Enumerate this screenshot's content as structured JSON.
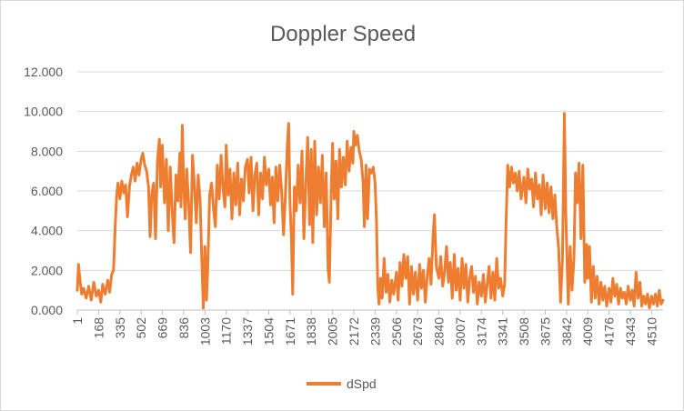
{
  "chart_data": {
    "type": "line",
    "title": "Doppler Speed",
    "xlabel": "",
    "ylabel": "",
    "ylim": [
      0,
      12
    ],
    "y_ticks": [
      "0.000",
      "2.000",
      "4.000",
      "6.000",
      "8.000",
      "10.000",
      "12.000"
    ],
    "x_tick_labels": [
      "1",
      "168",
      "335",
      "502",
      "669",
      "836",
      "1003",
      "1170",
      "1337",
      "1504",
      "1671",
      "1838",
      "2005",
      "2172",
      "2339",
      "2506",
      "2673",
      "2840",
      "3007",
      "3174",
      "3341",
      "3508",
      "3675",
      "3842",
      "4009",
      "4176",
      "4343",
      "4510"
    ],
    "x_range": [
      1,
      4600
    ],
    "grid": true,
    "legend_position": "bottom",
    "series": [
      {
        "name": "dSpd",
        "color": "#ED7D31",
        "points": [
          [
            1,
            1.0
          ],
          [
            10,
            2.3
          ],
          [
            20,
            1.6
          ],
          [
            35,
            0.8
          ],
          [
            50,
            1.1
          ],
          [
            70,
            0.6
          ],
          [
            90,
            1.2
          ],
          [
            110,
            0.5
          ],
          [
            130,
            1.4
          ],
          [
            150,
            0.7
          ],
          [
            168,
            1.0
          ],
          [
            185,
            0.4
          ],
          [
            200,
            1.3
          ],
          [
            220,
            0.8
          ],
          [
            240,
            1.5
          ],
          [
            255,
            0.9
          ],
          [
            270,
            1.8
          ],
          [
            285,
            2.0
          ],
          [
            300,
            4.5
          ],
          [
            310,
            5.8
          ],
          [
            320,
            6.4
          ],
          [
            335,
            5.6
          ],
          [
            350,
            6.5
          ],
          [
            365,
            5.9
          ],
          [
            380,
            6.3
          ],
          [
            395,
            4.7
          ],
          [
            410,
            6.2
          ],
          [
            425,
            6.8
          ],
          [
            440,
            7.2
          ],
          [
            455,
            6.5
          ],
          [
            470,
            7.4
          ],
          [
            485,
            6.8
          ],
          [
            502,
            7.6
          ],
          [
            515,
            7.9
          ],
          [
            530,
            7.3
          ],
          [
            545,
            7.0
          ],
          [
            560,
            6.2
          ],
          [
            572,
            3.7
          ],
          [
            585,
            5.8
          ],
          [
            600,
            6.4
          ],
          [
            615,
            3.6
          ],
          [
            630,
            7.5
          ],
          [
            645,
            8.6
          ],
          [
            655,
            6.2
          ],
          [
            669,
            8.3
          ],
          [
            685,
            5.4
          ],
          [
            700,
            7.6
          ],
          [
            715,
            4.0
          ],
          [
            730,
            7.2
          ],
          [
            745,
            5.1
          ],
          [
            760,
            3.4
          ],
          [
            775,
            6.8
          ],
          [
            790,
            5.5
          ],
          [
            805,
            7.9
          ],
          [
            815,
            5.2
          ],
          [
            825,
            9.3
          ],
          [
            836,
            6.4
          ],
          [
            848,
            4.6
          ],
          [
            860,
            7.1
          ],
          [
            875,
            5.4
          ],
          [
            890,
            2.9
          ],
          [
            905,
            7.8
          ],
          [
            920,
            6.3
          ],
          [
            935,
            4.4
          ],
          [
            950,
            6.8
          ],
          [
            965,
            5.5
          ],
          [
            980,
            2.2
          ],
          [
            990,
            0.1
          ],
          [
            1003,
            3.2
          ],
          [
            1015,
            0.5
          ],
          [
            1025,
            2.1
          ],
          [
            1040,
            5.8
          ],
          [
            1055,
            6.4
          ],
          [
            1070,
            5.1
          ],
          [
            1085,
            4.2
          ],
          [
            1100,
            7.3
          ],
          [
            1115,
            5.6
          ],
          [
            1130,
            7.8
          ],
          [
            1145,
            6.1
          ],
          [
            1160,
            5.2
          ],
          [
            1170,
            8.3
          ],
          [
            1185,
            5.8
          ],
          [
            1200,
            7.1
          ],
          [
            1215,
            4.6
          ],
          [
            1230,
            6.9
          ],
          [
            1245,
            5.3
          ],
          [
            1260,
            7.4
          ],
          [
            1275,
            4.8
          ],
          [
            1290,
            6.6
          ],
          [
            1305,
            5.5
          ],
          [
            1320,
            7.2
          ],
          [
            1337,
            7.6
          ],
          [
            1350,
            5.9
          ],
          [
            1365,
            7.7
          ],
          [
            1380,
            5.0
          ],
          [
            1395,
            6.8
          ],
          [
            1410,
            7.4
          ],
          [
            1425,
            4.8
          ],
          [
            1440,
            6.9
          ],
          [
            1455,
            5.6
          ],
          [
            1470,
            7.7
          ],
          [
            1485,
            6.3
          ],
          [
            1504,
            7.1
          ],
          [
            1518,
            5.3
          ],
          [
            1532,
            6.7
          ],
          [
            1546,
            4.4
          ],
          [
            1560,
            7.2
          ],
          [
            1575,
            5.5
          ],
          [
            1590,
            7.3
          ],
          [
            1605,
            6.0
          ],
          [
            1620,
            3.8
          ],
          [
            1635,
            5.8
          ],
          [
            1650,
            8.3
          ],
          [
            1660,
            9.4
          ],
          [
            1671,
            5.3
          ],
          [
            1682,
            3.6
          ],
          [
            1692,
            0.8
          ],
          [
            1705,
            6.2
          ],
          [
            1720,
            5.0
          ],
          [
            1735,
            7.3
          ],
          [
            1750,
            5.4
          ],
          [
            1765,
            8.0
          ],
          [
            1780,
            3.6
          ],
          [
            1795,
            6.4
          ],
          [
            1810,
            8.7
          ],
          [
            1825,
            4.3
          ],
          [
            1838,
            8.1
          ],
          [
            1850,
            3.4
          ],
          [
            1865,
            8.5
          ],
          [
            1880,
            4.8
          ],
          [
            1895,
            7.2
          ],
          [
            1910,
            5.4
          ],
          [
            1925,
            7.8
          ],
          [
            1940,
            4.2
          ],
          [
            1955,
            6.9
          ],
          [
            1970,
            2.1
          ],
          [
            1980,
            1.4
          ],
          [
            1995,
            6.1
          ],
          [
            2005,
            8.4
          ],
          [
            2018,
            5.6
          ],
          [
            2032,
            7.5
          ],
          [
            2046,
            4.6
          ],
          [
            2060,
            8.1
          ],
          [
            2075,
            6.2
          ],
          [
            2090,
            7.7
          ],
          [
            2105,
            6.3
          ],
          [
            2120,
            8.5
          ],
          [
            2135,
            7.0
          ],
          [
            2150,
            8.2
          ],
          [
            2165,
            7.4
          ],
          [
            2172,
            9.0
          ],
          [
            2185,
            8.3
          ],
          [
            2200,
            8.8
          ],
          [
            2215,
            8.0
          ],
          [
            2230,
            7.6
          ],
          [
            2245,
            6.4
          ],
          [
            2255,
            4.2
          ],
          [
            2268,
            7.3
          ],
          [
            2280,
            4.6
          ],
          [
            2295,
            7.1
          ],
          [
            2310,
            6.9
          ],
          [
            2325,
            7.2
          ],
          [
            2339,
            6.4
          ],
          [
            2350,
            4.5
          ],
          [
            2360,
            1.2
          ],
          [
            2370,
            0.3
          ],
          [
            2382,
            1.6
          ],
          [
            2395,
            0.6
          ],
          [
            2410,
            2.6
          ],
          [
            2425,
            0.9
          ],
          [
            2440,
            1.8
          ],
          [
            2455,
            0.4
          ],
          [
            2470,
            1.5
          ],
          [
            2485,
            0.8
          ],
          [
            2506,
            1.9
          ],
          [
            2520,
            0.5
          ],
          [
            2535,
            2.4
          ],
          [
            2550,
            1.2
          ],
          [
            2565,
            2.8
          ],
          [
            2580,
            1.6
          ],
          [
            2595,
            2.7
          ],
          [
            2610,
            0.3
          ],
          [
            2625,
            2.2
          ],
          [
            2640,
            0.8
          ],
          [
            2655,
            1.9
          ],
          [
            2673,
            0.5
          ],
          [
            2688,
            2.3
          ],
          [
            2703,
            1.1
          ],
          [
            2718,
            2.0
          ],
          [
            2733,
            0.4
          ],
          [
            2748,
            1.7
          ],
          [
            2763,
            2.6
          ],
          [
            2778,
            1.3
          ],
          [
            2793,
            3.6
          ],
          [
            2805,
            4.8
          ],
          [
            2820,
            2.2
          ],
          [
            2840,
            1.6
          ],
          [
            2855,
            2.7
          ],
          [
            2870,
            1.2
          ],
          [
            2885,
            1.9
          ],
          [
            2900,
            3.2
          ],
          [
            2915,
            1.4
          ],
          [
            2930,
            2.4
          ],
          [
            2945,
            0.6
          ],
          [
            2960,
            2.8
          ],
          [
            2975,
            1.0
          ],
          [
            2990,
            2.1
          ],
          [
            3007,
            0.5
          ],
          [
            3022,
            2.6
          ],
          [
            3037,
            1.1
          ],
          [
            3052,
            2.3
          ],
          [
            3067,
            0.4
          ],
          [
            3082,
            1.6
          ],
          [
            3097,
            2.2
          ],
          [
            3112,
            0.9
          ],
          [
            3127,
            1.7
          ],
          [
            3142,
            0.3
          ],
          [
            3157,
            1.4
          ],
          [
            3174,
            0.7
          ],
          [
            3189,
            1.8
          ],
          [
            3204,
            0.4
          ],
          [
            3219,
            1.3
          ],
          [
            3234,
            2.2
          ],
          [
            3249,
            0.6
          ],
          [
            3264,
            1.9
          ],
          [
            3279,
            0.5
          ],
          [
            3294,
            2.6
          ],
          [
            3309,
            1.1
          ],
          [
            3324,
            1.6
          ],
          [
            3341,
            0.7
          ],
          [
            3356,
            1.3
          ],
          [
            3368,
            4.6
          ],
          [
            3380,
            7.3
          ],
          [
            3395,
            6.2
          ],
          [
            3410,
            7.2
          ],
          [
            3425,
            6.4
          ],
          [
            3440,
            6.9
          ],
          [
            3455,
            6.0
          ],
          [
            3470,
            7.0
          ],
          [
            3485,
            5.6
          ],
          [
            3508,
            6.7
          ],
          [
            3523,
            5.4
          ],
          [
            3538,
            7.1
          ],
          [
            3553,
            6.1
          ],
          [
            3568,
            6.6
          ],
          [
            3583,
            5.2
          ],
          [
            3598,
            6.9
          ],
          [
            3613,
            5.6
          ],
          [
            3628,
            6.3
          ],
          [
            3643,
            4.8
          ],
          [
            3658,
            6.8
          ],
          [
            3675,
            5.1
          ],
          [
            3690,
            6.4
          ],
          [
            3705,
            4.9
          ],
          [
            3720,
            6.2
          ],
          [
            3735,
            4.6
          ],
          [
            3750,
            5.8
          ],
          [
            3765,
            4.2
          ],
          [
            3780,
            3.1
          ],
          [
            3795,
            0.4
          ],
          [
            3810,
            2.6
          ],
          [
            3825,
            9.9
          ],
          [
            3836,
            5.0
          ],
          [
            3842,
            3.4
          ],
          [
            3856,
            0.3
          ],
          [
            3870,
            3.2
          ],
          [
            3885,
            1.0
          ],
          [
            3900,
            2.6
          ],
          [
            3912,
            6.9
          ],
          [
            3925,
            5.4
          ],
          [
            3940,
            7.4
          ],
          [
            3955,
            3.6
          ],
          [
            3970,
            7.3
          ],
          [
            3985,
            1.4
          ],
          [
            4000,
            3.3
          ],
          [
            4009,
            1.6
          ],
          [
            4022,
            3.2
          ],
          [
            4037,
            0.4
          ],
          [
            4052,
            2.2
          ],
          [
            4067,
            0.6
          ],
          [
            4082,
            1.7
          ],
          [
            4097,
            0.3
          ],
          [
            4112,
            1.4
          ],
          [
            4127,
            0.5
          ],
          [
            4142,
            1.2
          ],
          [
            4157,
            0.2
          ],
          [
            4176,
            1.1
          ],
          [
            4191,
            0.4
          ],
          [
            4206,
            1.6
          ],
          [
            4221,
            0.7
          ],
          [
            4236,
            1.3
          ],
          [
            4251,
            0.3
          ],
          [
            4266,
            1.1
          ],
          [
            4281,
            0.6
          ],
          [
            4296,
            0.9
          ],
          [
            4311,
            0.3
          ],
          [
            4326,
            1.2
          ],
          [
            4343,
            0.5
          ],
          [
            4358,
            1.0
          ],
          [
            4373,
            0.2
          ],
          [
            4388,
            1.9
          ],
          [
            4403,
            0.6
          ],
          [
            4418,
            1.4
          ],
          [
            4433,
            0.2
          ],
          [
            4448,
            0.7
          ],
          [
            4463,
            0.3
          ],
          [
            4478,
            0.8
          ],
          [
            4493,
            0.1
          ],
          [
            4510,
            0.7
          ],
          [
            4525,
            0.3
          ],
          [
            4540,
            0.8
          ],
          [
            4555,
            0.2
          ],
          [
            4570,
            1.0
          ],
          [
            4585,
            0.3
          ],
          [
            4600,
            0.5
          ]
        ]
      }
    ]
  }
}
